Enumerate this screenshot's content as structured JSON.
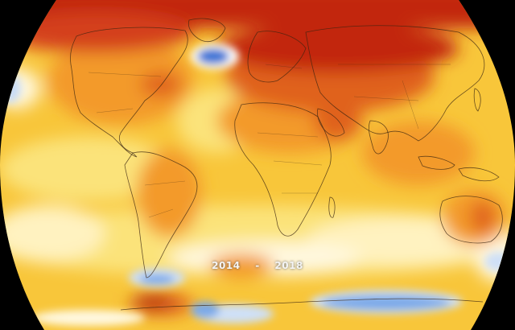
{
  "map": {
    "type": "global-temperature-anomaly",
    "projection": "robinson",
    "period_start": "2014",
    "period_separator": "-",
    "period_end": "2018",
    "colors": {
      "background": "#000000",
      "very_hot": "#c2260c",
      "hot": "#e0621a",
      "warm": "#f39a2a",
      "mild": "#f8c63a",
      "slightly_warm": "#fbe37a",
      "neutral": "#fff8df",
      "cool": "#7aa9e8",
      "cold": "#3b75d6",
      "coastline": "#3a2410"
    }
  }
}
